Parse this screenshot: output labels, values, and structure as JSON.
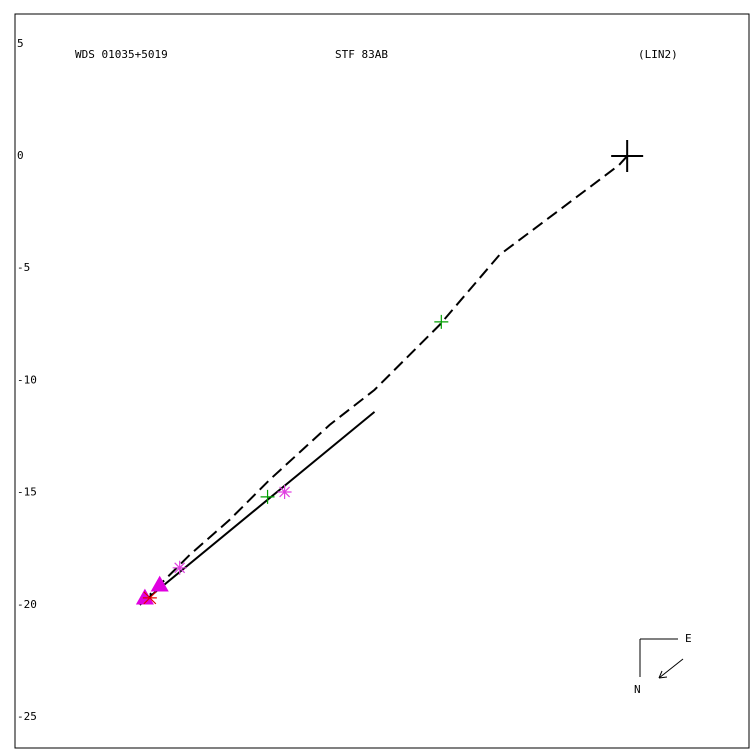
{
  "chart_data": {
    "type": "scatter",
    "title": "WDS 01035+5019",
    "subtitle": "STF  83AB",
    "annotation": "(LIN2)",
    "compass": {
      "east": "E",
      "north": "N"
    },
    "xlim": [
      -27.305,
      5.434
    ],
    "ylim": [
      -26.38,
      6.33
    ],
    "yticks": [
      5,
      0,
      -5,
      -10,
      -15,
      -20,
      -25
    ],
    "series": [
      {
        "color": "#000000",
        "line": "dashed",
        "x": [
          0,
          -0.36,
          -3.03,
          -5.7,
          -8.37,
          -11.27,
          -13.27,
          -15.95,
          -17.73,
          -19.51,
          -21.29
        ],
        "values": [
          0,
          -0.4,
          -2.41,
          -4.41,
          -7.53,
          -10.42,
          -11.98,
          -14.43,
          -16.21,
          -17.77,
          -19.55
        ]
      },
      {
        "color": "#000000",
        "line": "solid",
        "x": [
          -11.27,
          -21.74
        ],
        "values": [
          -11.4,
          -20.0
        ]
      },
      {
        "color": "#000000",
        "marker": "big-plus",
        "x": [
          0
        ],
        "values": [
          0
        ]
      },
      {
        "color": "#00a000",
        "marker": "plus",
        "x": [
          -8.29,
          -16.04
        ],
        "values": [
          -7.39,
          -15.19
        ]
      },
      {
        "color": "#e040e0",
        "marker": "asterisk",
        "x": [
          -19.96,
          -15.28
        ],
        "values": [
          -18.35,
          -14.97
        ]
      },
      {
        "color": "#e000e0",
        "marker": "triangle",
        "x": [
          -21.51,
          -20.85
        ],
        "values": [
          -19.69,
          -19.11
        ]
      },
      {
        "color": "#e00000",
        "marker": "star",
        "x": [
          -21.29
        ],
        "values": [
          -19.69
        ]
      }
    ]
  }
}
